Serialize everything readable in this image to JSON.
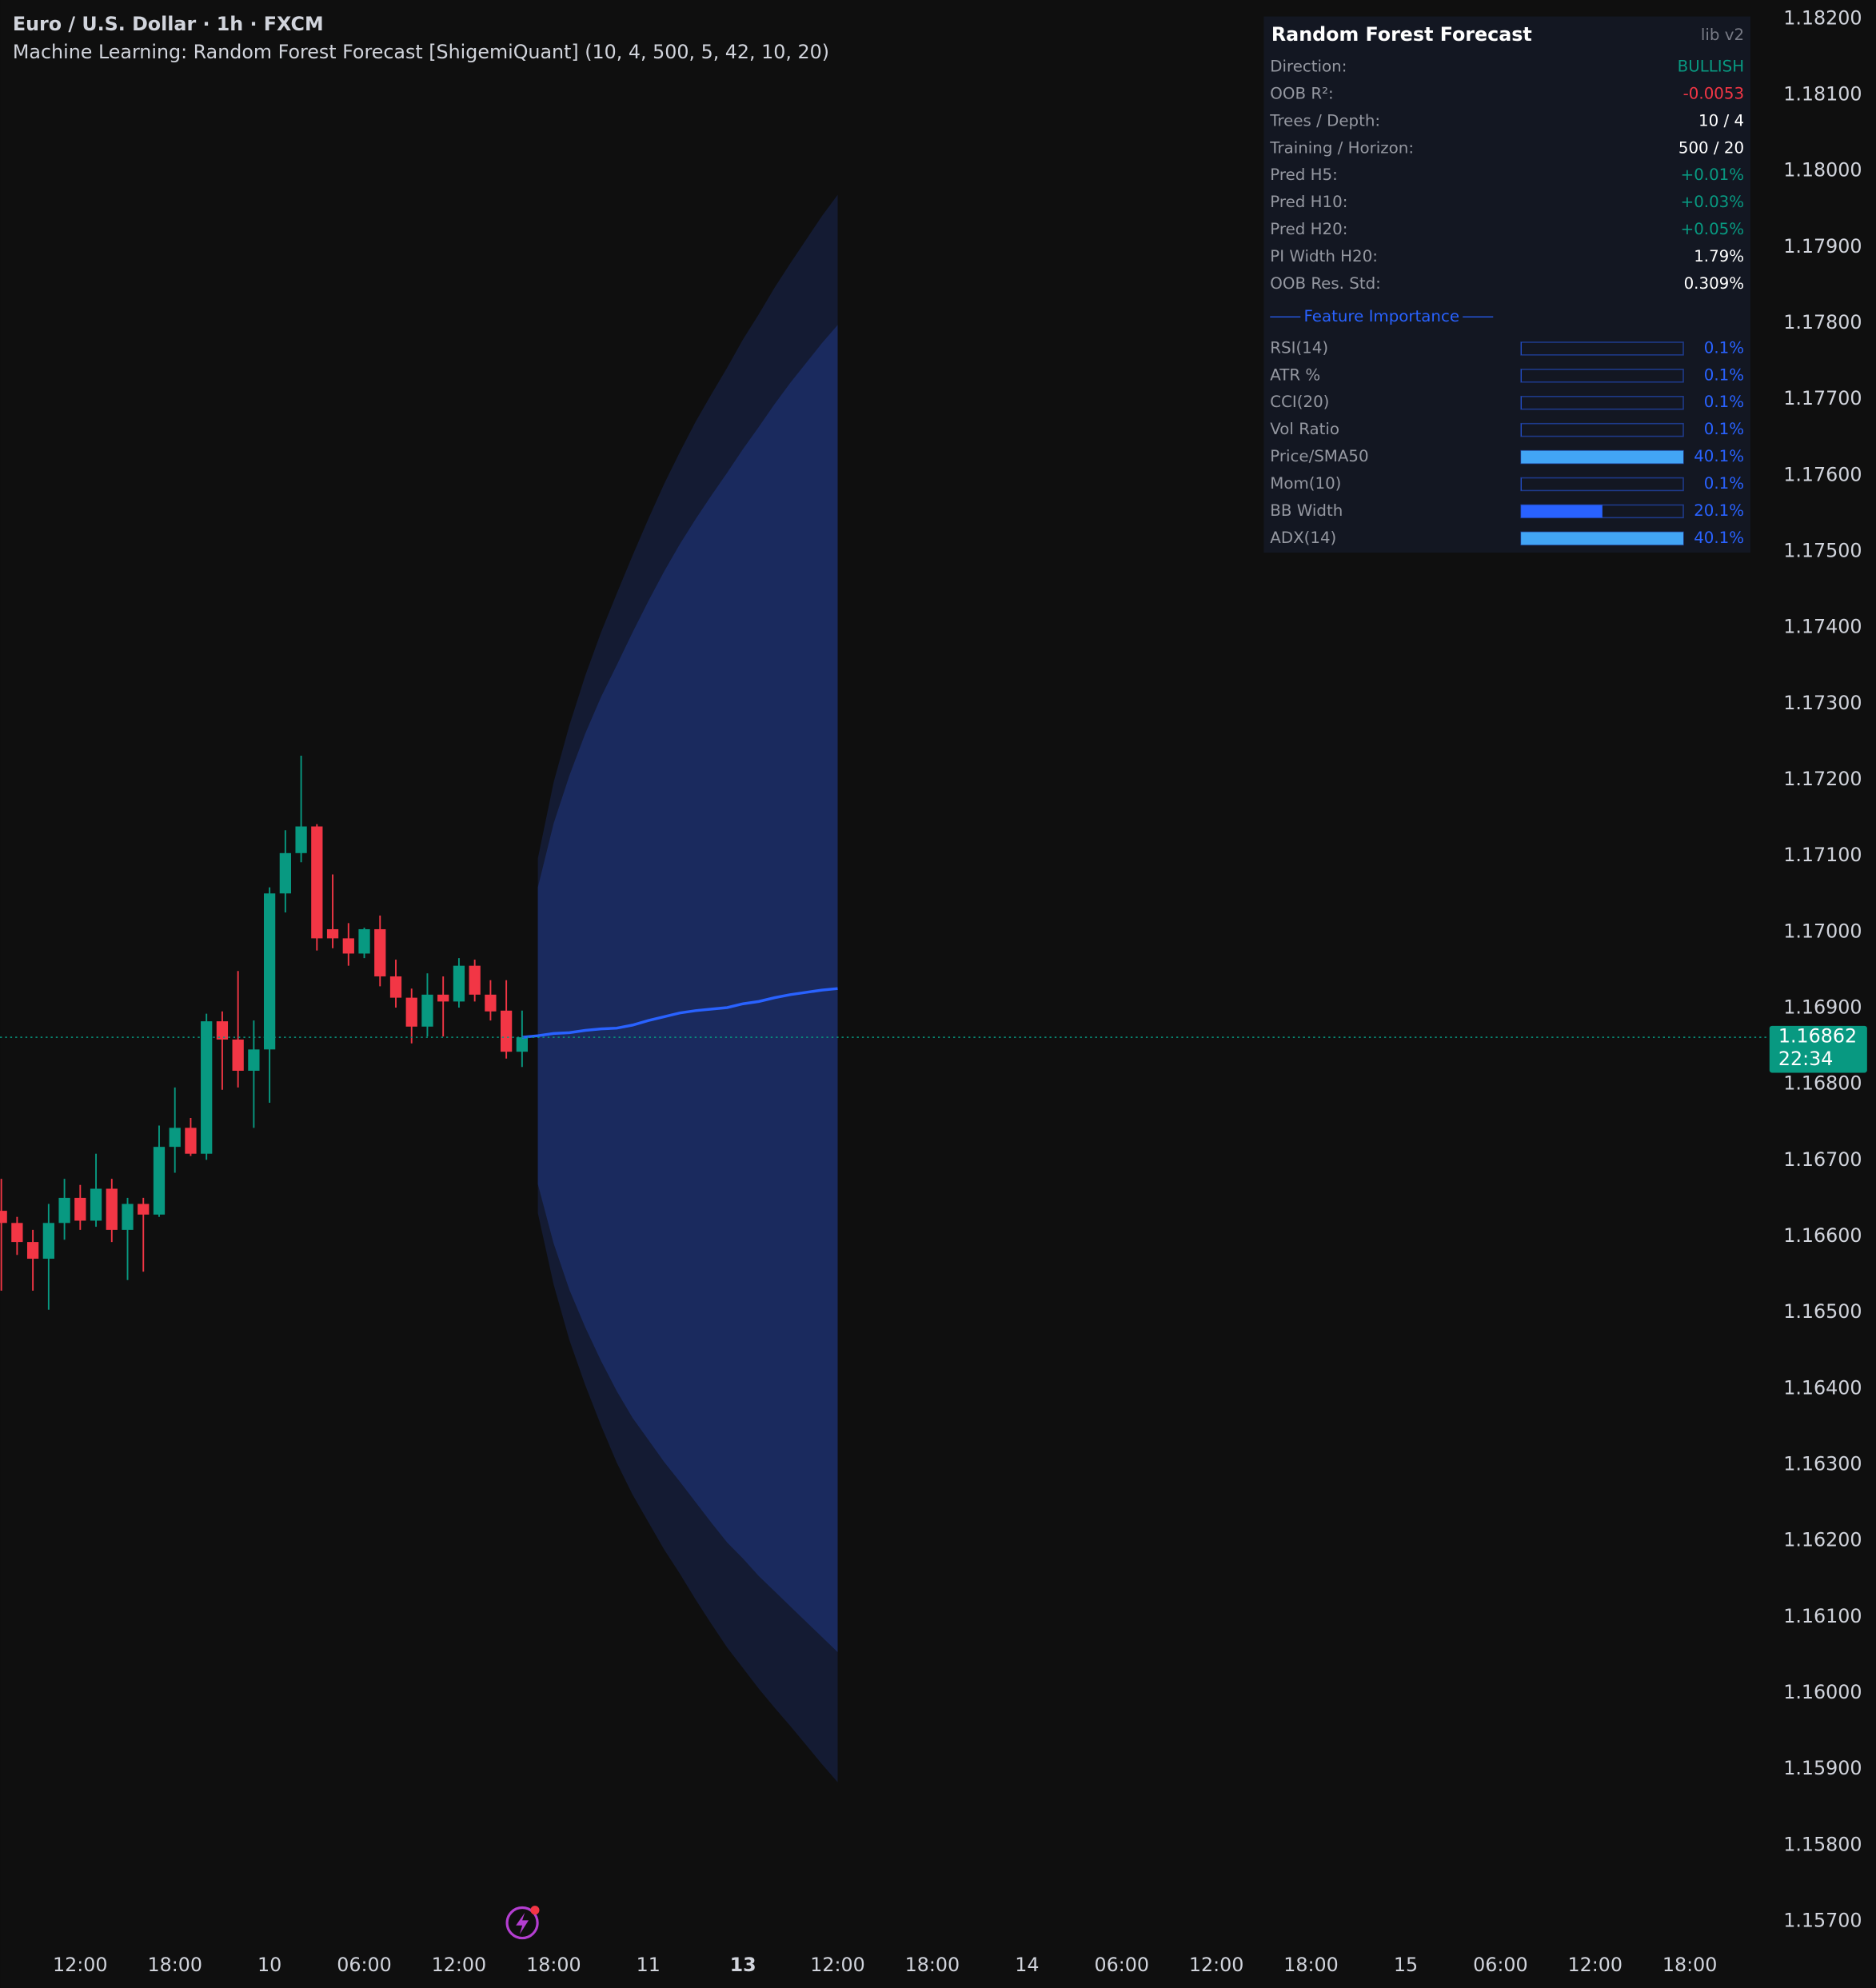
{
  "header": {
    "title": "Euro / U.S. Dollar · 1h · FXCM",
    "subtitle": "Machine Learning: Random Forest Forecast [ShigemiQuant] (10, 4, 500, 5, 42, 10, 20)"
  },
  "chart_data": {
    "type": "candlestick",
    "candles": {
      "open": [
        1.16634,
        1.16618,
        1.16593,
        1.16571,
        1.16618,
        1.16651,
        1.16621,
        1.16663,
        1.16609,
        1.16643,
        1.16629,
        1.16718,
        1.16743,
        1.16709,
        1.16883,
        1.16859,
        1.16818,
        1.16846,
        1.17051,
        1.17104,
        1.17139,
        1.17004,
        1.16992,
        1.16972,
        1.17004,
        1.16942,
        1.16914,
        1.16876,
        1.16918,
        1.16909,
        1.16956,
        1.16918,
        1.16897,
        1.16843
      ],
      "high": [
        1.16676,
        1.16626,
        1.16609,
        1.16643,
        1.16676,
        1.16668,
        1.16709,
        1.16676,
        1.16651,
        1.16651,
        1.16746,
        1.16796,
        1.16756,
        1.16893,
        1.16896,
        1.16949,
        1.16884,
        1.17059,
        1.17134,
        1.17232,
        1.17142,
        1.17076,
        1.17012,
        1.17006,
        1.17022,
        1.16964,
        1.16926,
        1.16946,
        1.16942,
        1.16966,
        1.16964,
        1.16937,
        1.16937,
        1.16897
      ],
      "low": [
        1.16529,
        1.16576,
        1.16529,
        1.16504,
        1.16596,
        1.16609,
        1.16613,
        1.16593,
        1.16543,
        1.16554,
        1.16626,
        1.16684,
        1.16706,
        1.16701,
        1.16793,
        1.16796,
        1.16743,
        1.16776,
        1.17026,
        1.17092,
        1.16976,
        1.16979,
        1.16956,
        1.16966,
        1.16929,
        1.16901,
        1.16854,
        1.16863,
        1.16863,
        1.16901,
        1.16909,
        1.16884,
        1.16834,
        1.16823
      ],
      "close": [
        1.16618,
        1.16593,
        1.16571,
        1.16618,
        1.16651,
        1.16621,
        1.16663,
        1.16609,
        1.16643,
        1.16629,
        1.16718,
        1.16743,
        1.16709,
        1.16883,
        1.16859,
        1.16818,
        1.16846,
        1.17051,
        1.17104,
        1.17139,
        1.16992,
        1.16992,
        1.16972,
        1.17004,
        1.16942,
        1.16914,
        1.16876,
        1.16918,
        1.16909,
        1.16956,
        1.16918,
        1.16896,
        1.16843,
        1.16862
      ],
      "up_color": "#089981",
      "down_color": "#f23645"
    },
    "forecast": {
      "color": "#2962ff",
      "mid": [
        1.16862,
        1.16864,
        1.16867,
        1.16868,
        1.16871,
        1.16873,
        1.16874,
        1.16878,
        1.16884,
        1.16889,
        1.16894,
        1.16897,
        1.16899,
        1.16901,
        1.16906,
        1.16909,
        1.16914,
        1.16918,
        1.16921,
        1.16924,
        1.16926
      ]
    },
    "bands": [
      {
        "color": "#141b33",
        "upper": [
          null,
          1.17097,
          1.17197,
          1.17272,
          1.17337,
          1.17394,
          1.17445,
          1.17495,
          1.17543,
          1.17589,
          1.17631,
          1.17671,
          1.17707,
          1.17742,
          1.17779,
          1.17812,
          1.17847,
          1.17879,
          1.1791,
          1.17941,
          1.17969
        ],
        "lower": [
          null,
          1.16631,
          1.16537,
          1.16464,
          1.16405,
          1.16352,
          1.16303,
          1.16261,
          1.16225,
          1.16189,
          1.16157,
          1.16123,
          1.16091,
          1.1606,
          1.16033,
          1.16006,
          1.15981,
          1.15957,
          1.15932,
          1.15907,
          1.15883
        ]
      },
      {
        "color": "#1a2a5e",
        "upper": [
          null,
          1.17059,
          1.17143,
          1.17206,
          1.17261,
          1.17309,
          1.17351,
          1.17394,
          1.17435,
          1.17474,
          1.1751,
          1.17543,
          1.17574,
          1.17604,
          1.17635,
          1.17664,
          1.17694,
          1.17722,
          1.17748,
          1.17774,
          1.17798
        ],
        "lower": [
          null,
          1.16669,
          1.16591,
          1.1653,
          1.16481,
          1.16437,
          1.16397,
          1.16362,
          1.16333,
          1.16304,
          1.16278,
          1.16251,
          1.16224,
          1.16198,
          1.16177,
          1.16154,
          1.16134,
          1.16114,
          1.16094,
          1.16074,
          1.16054
        ]
      }
    ],
    "last_price": 1.16862,
    "countdown": "22:34",
    "price_color": "#089981",
    "ylim": [
      1.182,
      1.157
    ],
    "yticks": [
      {
        "value": 1.182,
        "label": "1.18200"
      },
      {
        "value": 1.181,
        "label": "1.18100"
      },
      {
        "value": 1.18,
        "label": "1.18000"
      },
      {
        "value": 1.179,
        "label": "1.17900"
      },
      {
        "value": 1.178,
        "label": "1.17800"
      },
      {
        "value": 1.177,
        "label": "1.17700"
      },
      {
        "value": 1.176,
        "label": "1.17600"
      },
      {
        "value": 1.175,
        "label": "1.17500"
      },
      {
        "value": 1.174,
        "label": "1.17400"
      },
      {
        "value": 1.173,
        "label": "1.17300"
      },
      {
        "value": 1.172,
        "label": "1.17200"
      },
      {
        "value": 1.171,
        "label": "1.17100"
      },
      {
        "value": 1.17,
        "label": "1.17000"
      },
      {
        "value": 1.169,
        "label": "1.16900"
      },
      {
        "value": 1.168,
        "label": "1.16800"
      },
      {
        "value": 1.167,
        "label": "1.16700"
      },
      {
        "value": 1.166,
        "label": "1.16600"
      },
      {
        "value": 1.165,
        "label": "1.16500"
      },
      {
        "value": 1.164,
        "label": "1.16400"
      },
      {
        "value": 1.163,
        "label": "1.16300"
      },
      {
        "value": 1.162,
        "label": "1.16200"
      },
      {
        "value": 1.161,
        "label": "1.16100"
      },
      {
        "value": 1.16,
        "label": "1.16000"
      },
      {
        "value": 1.159,
        "label": "1.15900"
      },
      {
        "value": 1.158,
        "label": "1.15800"
      },
      {
        "value": 1.157,
        "label": "1.15700"
      }
    ],
    "xticks": [
      "12:00",
      "18:00",
      "10",
      "06:00",
      "12:00",
      "18:00",
      "11",
      "13",
      "12:00",
      "18:00",
      "14",
      "06:00",
      "12:00",
      "18:00",
      "15",
      "06:00",
      "12:00",
      "18:00"
    ],
    "bold_xtick": "13"
  },
  "panel": {
    "title": "Random Forest Forecast",
    "version": "lib v2",
    "rows": [
      {
        "label": "Direction:",
        "value": "BULLISH",
        "color": "#089981"
      },
      {
        "label": "OOB R²:",
        "value": "-0.0053",
        "color": "#f23645"
      },
      {
        "label": "Trees / Depth:",
        "value": "10 / 4",
        "color": "#ffffff"
      },
      {
        "label": "Training / Horizon:",
        "value": "500 / 20",
        "color": "#ffffff"
      },
      {
        "label": "Pred H5:",
        "value": "+0.01%",
        "color": "#089981"
      },
      {
        "label": "Pred H10:",
        "value": "+0.03%",
        "color": "#089981"
      },
      {
        "label": "Pred H20:",
        "value": "+0.05%",
        "color": "#089981"
      },
      {
        "label": "PI Width H20:",
        "value": "1.79%",
        "color": "#ffffff"
      },
      {
        "label": "OOB Res. Std:",
        "value": "0.309%",
        "color": "#ffffff"
      }
    ],
    "feature_heading": "Feature Importance",
    "features": [
      {
        "name": "RSI(14)",
        "value": 0.1,
        "label": "0.1%"
      },
      {
        "name": "ATR %",
        "value": 0.1,
        "label": "0.1%"
      },
      {
        "name": "CCI(20)",
        "value": 0.1,
        "label": "0.1%"
      },
      {
        "name": "Vol Ratio",
        "value": 0.1,
        "label": "0.1%"
      },
      {
        "name": "Price/SMA50",
        "value": 40.1,
        "label": "40.1%"
      },
      {
        "name": "Mom(10)",
        "value": 0.1,
        "label": "0.1%"
      },
      {
        "name": "BB Width",
        "value": 20.1,
        "label": "20.1%"
      },
      {
        "name": "ADX(14)",
        "value": 40.1,
        "label": "40.1%"
      }
    ]
  }
}
